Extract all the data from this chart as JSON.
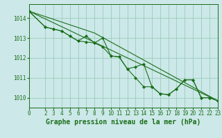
{
  "background_color": "#cce8e8",
  "grid_color": "#99ccbb",
  "line_color": "#1a6e1a",
  "marker_color": "#1a6e1a",
  "xlabel": "Graphe pression niveau de la mer (hPa)",
  "xlabel_fontsize": 7,
  "xlim": [
    0,
    23
  ],
  "ylim": [
    1009.5,
    1014.7
  ],
  "yticks": [
    1010,
    1011,
    1012,
    1013,
    1014
  ],
  "xticks": [
    0,
    2,
    3,
    4,
    5,
    6,
    7,
    8,
    9,
    10,
    11,
    12,
    13,
    14,
    15,
    16,
    17,
    18,
    19,
    20,
    21,
    22,
    23
  ],
  "series1_x": [
    0,
    2,
    3,
    4,
    5,
    6,
    7,
    8,
    9,
    10,
    11,
    12,
    13,
    14,
    15,
    16,
    17,
    18,
    19,
    20,
    21,
    22,
    23
  ],
  "series1_y": [
    1014.35,
    1013.55,
    1013.45,
    1013.35,
    1013.1,
    1012.85,
    1013.1,
    1012.75,
    1013.0,
    1012.1,
    1012.05,
    1011.45,
    1011.55,
    1011.7,
    1010.55,
    1010.2,
    1010.15,
    1010.45,
    1010.9,
    1010.9,
    1010.0,
    1010.0,
    1009.85
  ],
  "series2_x": [
    0,
    2,
    3,
    4,
    5,
    6,
    7,
    8,
    9,
    10,
    11,
    12,
    13,
    14,
    15,
    16,
    17,
    18,
    19,
    20,
    21,
    22,
    23
  ],
  "series2_y": [
    1014.35,
    1013.55,
    1013.45,
    1013.35,
    1013.1,
    1012.85,
    1012.8,
    1012.75,
    1012.55,
    1012.1,
    1012.05,
    1011.45,
    1011.0,
    1010.55,
    1010.55,
    1010.2,
    1010.15,
    1010.45,
    1010.9,
    1010.9,
    1010.0,
    1010.0,
    1009.85
  ],
  "series3_x": [
    0,
    23
  ],
  "series3_y": [
    1014.35,
    1009.85
  ],
  "series4_x": [
    0,
    8,
    23
  ],
  "series4_y": [
    1014.35,
    1013.25,
    1009.85
  ]
}
